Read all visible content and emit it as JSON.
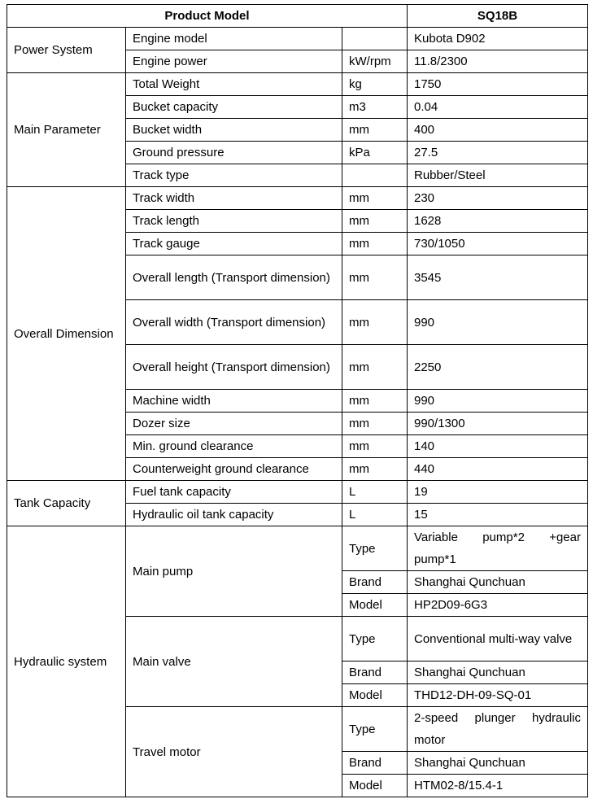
{
  "header": {
    "label": "Product Model",
    "model": "SQ18B"
  },
  "groups": [
    {
      "label": "Power System",
      "rows": [
        {
          "param": "Engine model",
          "unit": "",
          "value": "Kubota D902"
        },
        {
          "param": "Engine power",
          "unit": "kW/rpm",
          "value": "11.8/2300"
        }
      ]
    },
    {
      "label": "Main Parameter",
      "rows": [
        {
          "param": "Total Weight",
          "unit": "kg",
          "value": "1750"
        },
        {
          "param": "Bucket capacity",
          "unit": "m3",
          "value": "0.04"
        },
        {
          "param": "Bucket width",
          "unit": "mm",
          "value": "400"
        },
        {
          "param": "Ground pressure",
          "unit": "kPa",
          "value": "27.5"
        },
        {
          "param": "Track type",
          "unit": "",
          "value": "Rubber/Steel"
        }
      ]
    },
    {
      "label": "Overall Dimension",
      "rows": [
        {
          "param": "Track width",
          "unit": "mm",
          "value": "230"
        },
        {
          "param": "Track length",
          "unit": "mm",
          "value": "1628"
        },
        {
          "param": "Track gauge",
          "unit": "mm",
          "value": "730/1050"
        },
        {
          "param": "Overall length (Transport dimension)",
          "unit": "mm",
          "value": "3545",
          "tall": true
        },
        {
          "param": "Overall width (Transport dimension)",
          "unit": "mm",
          "value": "990",
          "tall": true
        },
        {
          "param": "Overall height (Transport dimension)",
          "unit": "mm",
          "value": "2250",
          "tall": true
        },
        {
          "param": "Machine width",
          "unit": "mm",
          "value": "990"
        },
        {
          "param": "Dozer size",
          "unit": "mm",
          "value": "990/1300"
        },
        {
          "param": "Min. ground clearance",
          "unit": "mm",
          "value": "140"
        },
        {
          "param": "Counterweight ground clearance",
          "unit": "mm",
          "value": "440"
        }
      ]
    },
    {
      "label": "Tank Capacity",
      "rows": [
        {
          "param": "Fuel tank capacity",
          "unit": "L",
          "value": "19"
        },
        {
          "param": "Hydraulic oil tank capacity",
          "unit": "L",
          "value": "15"
        }
      ]
    }
  ],
  "hydraulic": {
    "label": "Hydraulic system",
    "components": [
      {
        "name": "Main pump",
        "rows": [
          {
            "attr": "Type",
            "value": "Variable pump*2 +gear pump*1",
            "tall": true
          },
          {
            "attr": "Brand",
            "value": "Shanghai Qunchuan"
          },
          {
            "attr": "Model",
            "value": "HP2D09-6G3"
          }
        ]
      },
      {
        "name": "Main valve",
        "rows": [
          {
            "attr": "Type",
            "value": "Conventional multi-way valve",
            "tall": true
          },
          {
            "attr": "Brand",
            "value": "Shanghai Qunchuan"
          },
          {
            "attr": "Model",
            "value": "THD12-DH-09-SQ-01"
          }
        ]
      },
      {
        "name": "Travel motor",
        "rows": [
          {
            "attr": "Type",
            "value": "2-speed plunger hydraulic motor",
            "tall": true
          },
          {
            "attr": "Brand",
            "value": "Shanghai Qunchuan"
          },
          {
            "attr": "Model",
            "value": "HTM02-8/15.4-1"
          }
        ]
      }
    ]
  }
}
